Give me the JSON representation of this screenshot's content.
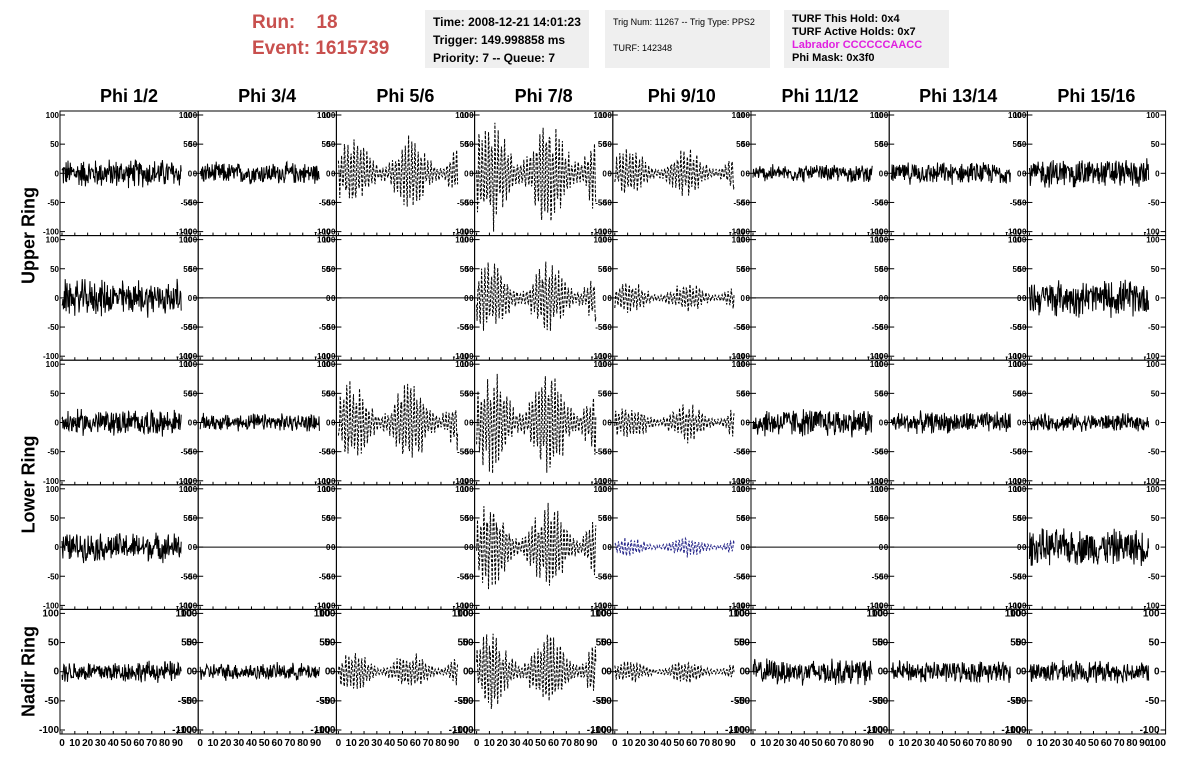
{
  "header": {
    "run_label": "Run:",
    "run_value": "18",
    "event_label": "Event:",
    "event_value": "1615739",
    "time": "Time: 2008-12-21 14:01:23",
    "trigger": "Trigger: 149.998858 ms",
    "priority": "Priority: 7 -- Queue: 7",
    "trig_num": "Trig Num: 11267 -- Trig Type: PPS2",
    "turf": "TURF: 142348",
    "turf_this_hold": "TURF This Hold: 0x4",
    "turf_active_holds": "TURF Active Holds: 0x7",
    "labrador": "Labrador CCCCCCAACC",
    "phi_mask": "Phi Mask: 0x3f0"
  },
  "colors": {
    "run_text": "#c8504e",
    "labrador_text": "#e020e0",
    "trace": "#000000",
    "trace_highlight": "#2a2a8c",
    "box_bg": "#efefef"
  },
  "columns": [
    "Phi 1/2",
    "Phi 3/4",
    "Phi 5/6",
    "Phi 7/8",
    "Phi 9/10",
    "Phi 11/12",
    "Phi 13/14",
    "Phi 15/16"
  ],
  "rings": [
    "Upper Ring",
    "Lower Ring",
    "Nadir Ring"
  ],
  "chart_data": {
    "type": "line",
    "grid": false,
    "rows": 5,
    "cols": 8,
    "ylim": [
      -100,
      100
    ],
    "xlim": [
      0,
      100
    ],
    "y_ticks": [
      100,
      50,
      0,
      -50,
      -100
    ],
    "x_ticks": [
      0,
      10,
      20,
      30,
      40,
      50,
      60,
      70,
      80,
      90,
      100
    ],
    "x_tick_labels": [
      "0",
      "10",
      "20",
      "30",
      "40",
      "50",
      "60",
      "70",
      "80",
      "90",
      "100"
    ],
    "amplitude_grid": [
      [
        20,
        15,
        45,
        70,
        30,
        12,
        15,
        20
      ],
      [
        25,
        0,
        0,
        45,
        20,
        0,
        0,
        25
      ],
      [
        18,
        12,
        50,
        65,
        25,
        20,
        15,
        12
      ],
      [
        20,
        0,
        0,
        55,
        12,
        0,
        0,
        25
      ],
      [
        15,
        12,
        25,
        50,
        15,
        18,
        15,
        15
      ]
    ],
    "dashed_grid": [
      [
        false,
        false,
        true,
        true,
        true,
        false,
        false,
        false
      ],
      [
        false,
        false,
        false,
        true,
        true,
        false,
        false,
        false
      ],
      [
        false,
        false,
        true,
        true,
        true,
        false,
        false,
        false
      ],
      [
        false,
        false,
        false,
        true,
        true,
        false,
        false,
        false
      ],
      [
        false,
        false,
        true,
        true,
        true,
        false,
        false,
        false
      ]
    ],
    "trace_end": 93,
    "highlight_cell": [
      3,
      4
    ]
  }
}
